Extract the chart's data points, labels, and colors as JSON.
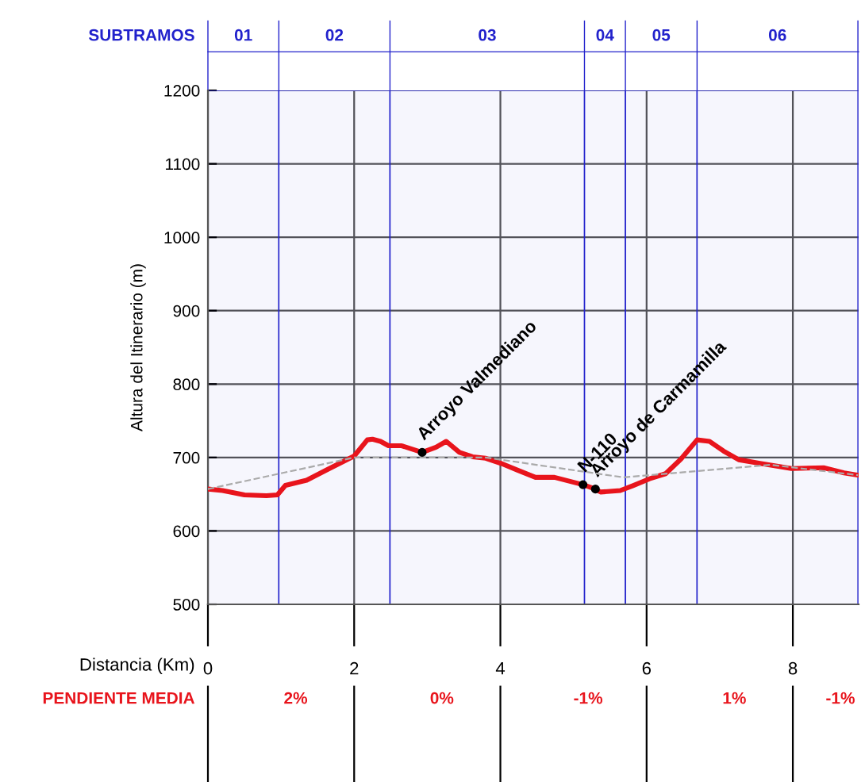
{
  "chart_data": {
    "type": "line",
    "xlabel": "Distancia (Km)",
    "ylabel": "Altura del Itinerario (m)",
    "xlim": [
      0,
      8.9
    ],
    "ylim": [
      500,
      1200
    ],
    "xticks": [
      0,
      2,
      4,
      6,
      8
    ],
    "yticks": [
      500,
      600,
      700,
      800,
      900,
      1000,
      1100,
      1200
    ],
    "grid": true,
    "series": [
      {
        "color": "#e8141c",
        "line_style": "solid",
        "x": [
          0,
          0.2,
          0.5,
          0.8,
          0.95,
          1.06,
          1.35,
          1.64,
          2.0,
          2.18,
          2.25,
          2.36,
          2.47,
          2.65,
          2.93,
          3.12,
          3.26,
          3.44,
          3.62,
          3.8,
          4.01,
          4.23,
          4.48,
          4.74,
          5.13,
          5.3,
          5.37,
          5.64,
          5.82,
          6.04,
          6.26,
          6.47,
          6.69,
          6.86,
          7.05,
          7.26,
          7.55,
          7.8,
          7.98,
          8.42,
          8.7,
          8.89
        ],
        "values": [
          657,
          655,
          649,
          648,
          649,
          662,
          669,
          684,
          702,
          724,
          725,
          722,
          716,
          716,
          707,
          714,
          722,
          707,
          701,
          699,
          692,
          683,
          673,
          673,
          663,
          657,
          653,
          655,
          662,
          671,
          678,
          698,
          724,
          722,
          709,
          697,
          692,
          688,
          685,
          686,
          679,
          676
        ]
      },
      {
        "color": "#aaaaaa",
        "line_style": "dashed",
        "x": [
          0,
          2.0,
          3.8,
          5.68,
          7.7,
          8.89
        ],
        "values": [
          657,
          700,
          700,
          673,
          690,
          676
        ]
      }
    ],
    "bands": [
      {
        "axis": "x",
        "from": 0,
        "to": 0.97,
        "label": "01",
        "color": "#2222cc"
      },
      {
        "axis": "x",
        "from": 0.97,
        "to": 2.49,
        "label": "02",
        "color": "#2222cc"
      },
      {
        "axis": "x",
        "from": 2.49,
        "to": 5.15,
        "label": "03",
        "color": "#2222cc"
      },
      {
        "axis": "x",
        "from": 5.15,
        "to": 5.71,
        "label": "04",
        "color": "#2222cc"
      },
      {
        "axis": "x",
        "from": 5.71,
        "to": 6.69,
        "label": "05",
        "color": "#2222cc"
      },
      {
        "axis": "x",
        "from": 6.69,
        "to": 8.89,
        "label": "06",
        "color": "#2222cc"
      }
    ],
    "annotations": [
      "SUBTRAMOS",
      "PENDIENTE MEDIA",
      "2%",
      "0%",
      "-1%",
      "1%",
      "-1%",
      {
        "text": "Arroyo Valmediano",
        "x": 2.93,
        "y": 707
      },
      {
        "text": "N-110",
        "x": 5.13,
        "y": 663
      },
      {
        "text": "Arroyo de Carmamilla",
        "x": 5.3,
        "y": 657
      }
    ]
  }
}
